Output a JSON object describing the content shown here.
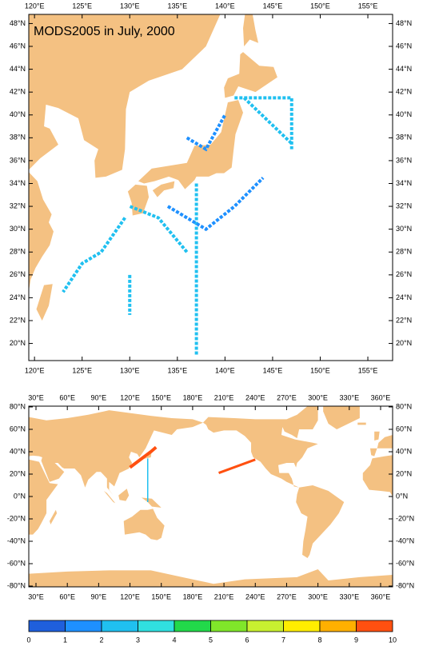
{
  "title": "MODS2005 in July, 2000",
  "land_color": "#f4c182",
  "panels": [
    {
      "lonlim": [
        119.4,
        157.6
      ],
      "latlim": [
        18.5,
        48.8
      ],
      "lon_ticks": [
        {
          "value": 120,
          "label": "120°E"
        },
        {
          "value": 125,
          "label": "125°E"
        },
        {
          "value": 130,
          "label": "130°E"
        },
        {
          "value": 135,
          "label": "135°E"
        },
        {
          "value": 140,
          "label": "140°E"
        },
        {
          "value": 145,
          "label": "145°E"
        },
        {
          "value": 150,
          "label": "150°E"
        },
        {
          "value": 155,
          "label": "155°E"
        }
      ],
      "lat_ticks": [
        {
          "value": 20,
          "label": "20°N"
        },
        {
          "value": 22,
          "label": "22°N"
        },
        {
          "value": 24,
          "label": "24°N"
        },
        {
          "value": 26,
          "label": "26°N"
        },
        {
          "value": 28,
          "label": "28°N"
        },
        {
          "value": 30,
          "label": "30°N"
        },
        {
          "value": 32,
          "label": "32°N"
        },
        {
          "value": 34,
          "label": "34°N"
        },
        {
          "value": 36,
          "label": "36°N"
        },
        {
          "value": 38,
          "label": "38°N"
        },
        {
          "value": 40,
          "label": "40°N"
        },
        {
          "value": 42,
          "label": "42°N"
        },
        {
          "value": 44,
          "label": "44°N"
        },
        {
          "value": 46,
          "label": "46°N"
        },
        {
          "value": 48,
          "label": "48°N"
        }
      ]
    },
    {
      "lonlim": [
        23.1,
        371.5
      ],
      "latlim": [
        -80.7,
        80.7
      ],
      "lon_ticks": [
        {
          "value": 30,
          "label": "30°E"
        },
        {
          "value": 60,
          "label": "60°E"
        },
        {
          "value": 90,
          "label": "90°E"
        },
        {
          "value": 120,
          "label": "120°E"
        },
        {
          "value": 150,
          "label": "150°E"
        },
        {
          "value": 180,
          "label": "180°E"
        },
        {
          "value": 210,
          "label": "210°E"
        },
        {
          "value": 240,
          "label": "240°E"
        },
        {
          "value": 270,
          "label": "270°E"
        },
        {
          "value": 300,
          "label": "300°E"
        },
        {
          "value": 330,
          "label": "330°E"
        },
        {
          "value": 360,
          "label": "360°E"
        }
      ],
      "lat_ticks": [
        {
          "value": -80,
          "label": "-80°N"
        },
        {
          "value": -60,
          "label": "-60°N"
        },
        {
          "value": -40,
          "label": "-40°N"
        },
        {
          "value": -20,
          "label": "-20°N"
        },
        {
          "value": 0,
          "label": "0°N"
        },
        {
          "value": 20,
          "label": "20°N"
        },
        {
          "value": 40,
          "label": "40°N"
        },
        {
          "value": 60,
          "label": "60°N"
        },
        {
          "value": 80,
          "label": "80°N"
        }
      ]
    }
  ],
  "colorbar": {
    "ticks": [
      0,
      1,
      2,
      3,
      4,
      5,
      6,
      7,
      8,
      9,
      10
    ],
    "colors": [
      "#1f5fdc",
      "#1e90ff",
      "#20c0f0",
      "#30e0e0",
      "#22d94a",
      "#80e62a",
      "#c8f030",
      "#ffee00",
      "#ffb000",
      "#ff5010"
    ]
  }
}
